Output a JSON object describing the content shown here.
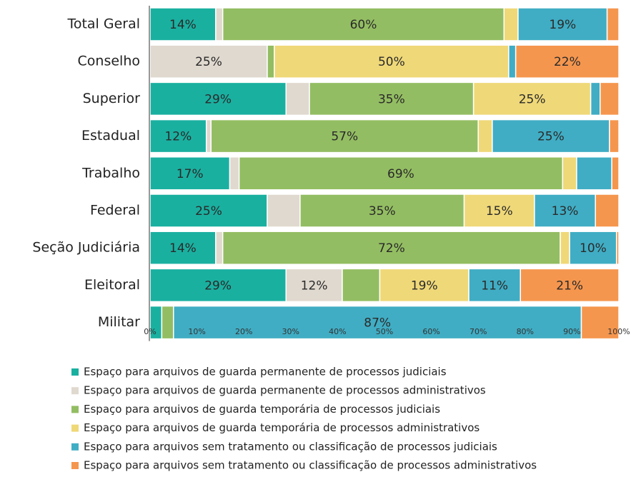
{
  "chart_data": {
    "type": "stacked-bar-horizontal",
    "categories": [
      "Total Geral",
      "Conselho",
      "Superior",
      "Estadual",
      "Trabalho",
      "Federal",
      "Seção Judiciária",
      "Eleitoral",
      "Militar"
    ],
    "series": [
      {
        "name": "Espaço para arquivos de guarda permanente de processos judiciais",
        "color": "#1ab0a0",
        "values": [
          14,
          0,
          29,
          12,
          17,
          25,
          14,
          29,
          2.5
        ],
        "value_labels": [
          "14%",
          null,
          "29%",
          "12%",
          "17%",
          "25%",
          "14%",
          "29%",
          null
        ]
      },
      {
        "name": "Espaço para arquivos de guarda permanente de processos administrativos",
        "color": "#e0d9cf",
        "values": [
          1.5,
          25,
          5,
          1,
          2,
          7,
          1.5,
          12,
          0
        ],
        "value_labels": [
          null,
          "25%",
          null,
          null,
          null,
          null,
          null,
          "12%",
          null
        ]
      },
      {
        "name": "Espaço para arquivos de guarda temporária de processos judiciais",
        "color": "#93bd62",
        "values": [
          60,
          1.5,
          35,
          57,
          69,
          35,
          72,
          8,
          2.5
        ],
        "value_labels": [
          "60%",
          null,
          "35%",
          "57%",
          "69%",
          "35%",
          "72%",
          null,
          null
        ]
      },
      {
        "name": "Espaço para arquivos de guarda temporária de processos administrativos",
        "color": "#efd878",
        "values": [
          3,
          50,
          25,
          3,
          3,
          15,
          2,
          19,
          0
        ],
        "value_labels": [
          null,
          "50%",
          "25%",
          null,
          null,
          "15%",
          null,
          "19%",
          null
        ]
      },
      {
        "name": "Espaço para arquivos sem tratamento ou classificação de processos judiciais",
        "color": "#40adc4",
        "values": [
          19,
          1.5,
          2,
          25,
          7.5,
          13,
          10,
          11,
          87
        ],
        "value_labels": [
          "19%",
          null,
          null,
          "25%",
          null,
          "13%",
          "10%",
          "11%",
          "87%"
        ]
      },
      {
        "name": "Espaço para arquivos sem tratamento ou classificação de processos administrativos",
        "color": "#f5964e",
        "values": [
          2.5,
          22,
          4,
          2,
          1.5,
          5,
          0.5,
          21,
          8
        ],
        "value_labels": [
          null,
          "22%",
          null,
          null,
          null,
          null,
          null,
          "21%",
          null
        ]
      }
    ],
    "xlim": [
      0,
      100
    ],
    "xticks": [
      {
        "value": 0,
        "label": "0%"
      },
      {
        "value": 10,
        "label": "10%"
      },
      {
        "value": 20,
        "label": "20%"
      },
      {
        "value": 30,
        "label": "30%"
      },
      {
        "value": 40,
        "label": "40%"
      },
      {
        "value": 50,
        "label": "50%"
      },
      {
        "value": 60,
        "label": "60%"
      },
      {
        "value": 70,
        "label": "70%"
      },
      {
        "value": 80,
        "label": "80%"
      },
      {
        "value": 90,
        "label": "90%"
      },
      {
        "value": 100,
        "label": "100%"
      }
    ],
    "legend": "bottom"
  }
}
